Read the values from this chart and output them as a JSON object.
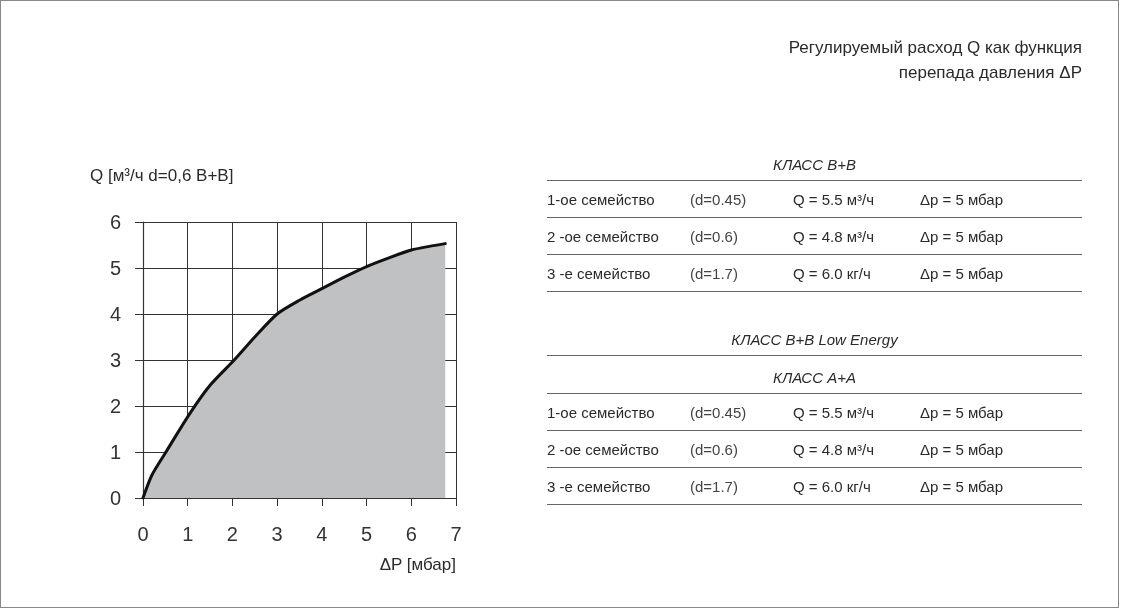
{
  "chart_data": [
    {
      "type": "area",
      "xlabel": "ΔP [мбар]",
      "ylabel": "Q [м³/ч d=0,6 B+B]",
      "x": [
        0,
        0.2,
        0.5,
        1.05,
        1.5,
        2.04,
        2.5,
        3.0,
        3.5,
        4.0,
        4.5,
        5.0,
        5.5,
        6.0,
        6.4,
        6.76
      ],
      "values": [
        0,
        0.5,
        0.98,
        1.84,
        2.45,
        3.0,
        3.5,
        4.0,
        4.3,
        4.55,
        4.8,
        5.03,
        5.22,
        5.39,
        5.47,
        5.53
      ],
      "color": "#c0c1c3",
      "xlim": [
        0,
        7
      ],
      "ylim": [
        0,
        6
      ],
      "xticks": [
        0,
        1,
        2,
        3,
        4,
        5,
        6,
        7
      ],
      "yticks": [
        0,
        1,
        2,
        3,
        4,
        5,
        6
      ],
      "grid": true
    },
    {
      "type": "other",
      "title": "Регулируемый расход Q как функция перепада давления ΔP",
      "subtitle": "КЛАСС B+B",
      "annotations": [
        "1-ое семейство",
        "(d=0.45)",
        "Q = 5.5 м³/ч",
        "Δp = 5 мбар",
        "2 -ое семейство",
        "(d=0.6)",
        "Q = 4.8 м³/ч",
        "Δp = 5 мбар",
        "3 -е семейство",
        "(d=1.7)",
        "Q = 6.0 кг/ч",
        "Δp = 5 мбар"
      ]
    },
    {
      "type": "other",
      "title": "КЛАСС B+B Low Energy",
      "subtitle": "КЛАСС A+A",
      "annotations": [
        "1-ое семейство",
        "(d=0.45)",
        "Q = 5.5 м³/ч",
        "Δp = 5 мбар",
        "2 -ое семейство",
        "(d=0.6)",
        "Q = 4.8 м³/ч",
        "Δp = 5 мбар",
        "3 -е семейство",
        "(d=1.7)",
        "Q = 6.0 кг/ч",
        "Δp = 5 мбар"
      ]
    }
  ]
}
